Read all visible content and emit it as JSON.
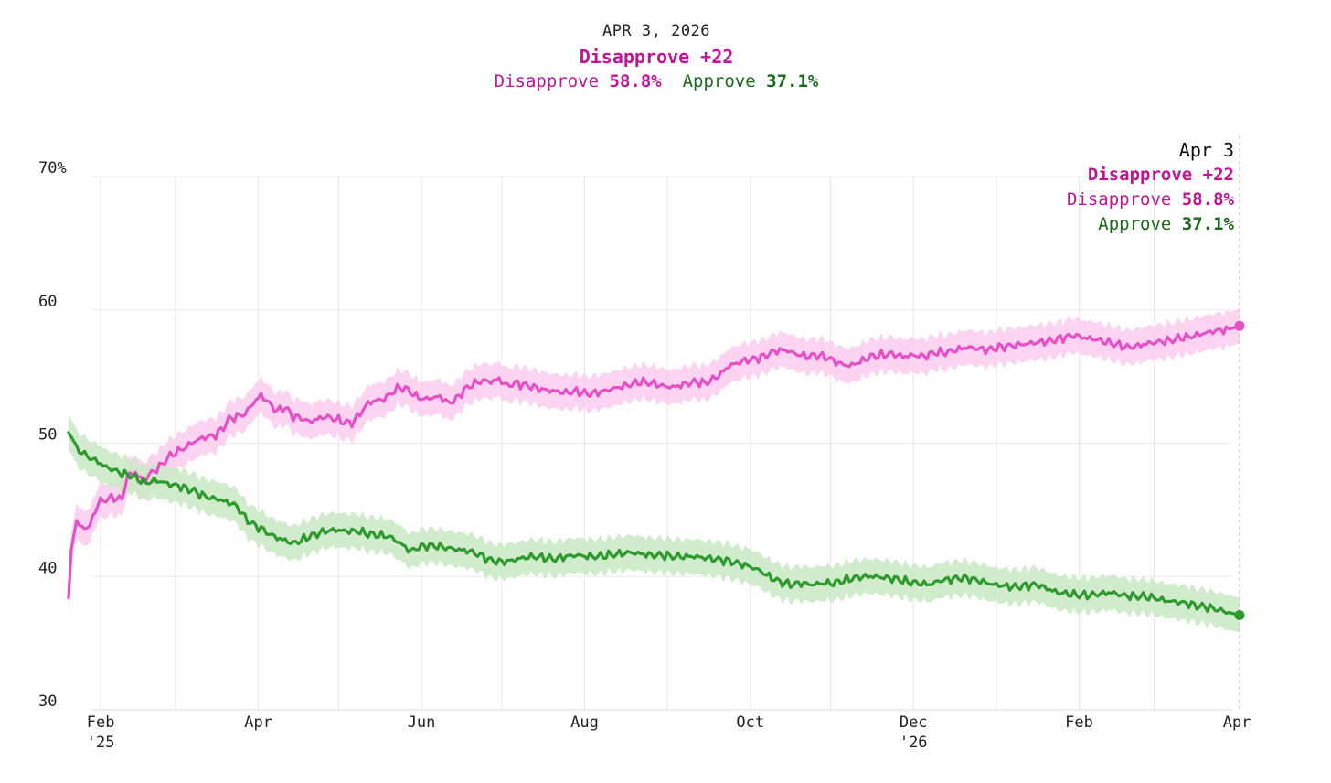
{
  "header": {
    "date": "APR 3, 2026",
    "spread": "Disapprove +22",
    "disapprove_label": "Disapprove",
    "disapprove_value": "58.8%",
    "approve_label": "Approve",
    "approve_value": "37.1%"
  },
  "tooltip": {
    "date": "Apr 3",
    "spread": "Disapprove +22",
    "disapprove_label": "Disapprove",
    "disapprove_value": "58.8%",
    "approve_label": "Approve",
    "approve_value": "37.1%"
  },
  "chart_data": {
    "type": "line",
    "title": "APR 3, 2026",
    "x_unit": "days since 2025-01-20",
    "xlim": [
      0,
      438
    ],
    "ylim": [
      30,
      70
    ],
    "yticks": [
      {
        "value": 70,
        "label": "70%"
      },
      {
        "value": 60,
        "label": "60"
      },
      {
        "value": 50,
        "label": "50"
      },
      {
        "value": 40,
        "label": "40"
      },
      {
        "value": 30,
        "label": "30"
      }
    ],
    "xticks": [
      {
        "day": 12,
        "label": "Feb",
        "sublabel": "'25"
      },
      {
        "day": 71,
        "label": "Apr",
        "sublabel": ""
      },
      {
        "day": 132,
        "label": "Jun",
        "sublabel": ""
      },
      {
        "day": 193,
        "label": "Aug",
        "sublabel": ""
      },
      {
        "day": 255,
        "label": "Oct",
        "sublabel": ""
      },
      {
        "day": 316,
        "label": "Dec",
        "sublabel": "'26"
      },
      {
        "day": 378,
        "label": "Feb",
        "sublabel": ""
      },
      {
        "day": 437,
        "label": "Apr",
        "sublabel": ""
      }
    ],
    "grid_days": [
      12,
      40,
      71,
      101,
      132,
      162,
      193,
      224,
      255,
      285,
      316,
      347,
      378,
      406,
      437
    ],
    "legend": "none",
    "colors": {
      "disapprove": "#e550c6",
      "disapprove_band": "#fbcdf0",
      "approve": "#2e9a2e",
      "approve_band": "#c9e9c4",
      "disapprove_text": "#c01595",
      "approve_text": "#1a6b1a"
    },
    "series": [
      {
        "name": "Disapprove",
        "band": 1.3,
        "points": [
          [
            0,
            38.4
          ],
          [
            1,
            42.0
          ],
          [
            3,
            44.2
          ],
          [
            5,
            43.6
          ],
          [
            8,
            43.8
          ],
          [
            11,
            45.5
          ],
          [
            14,
            45.8
          ],
          [
            17,
            45.9
          ],
          [
            20,
            45.8
          ],
          [
            22,
            47.5
          ],
          [
            25,
            47.8
          ],
          [
            28,
            47.1
          ],
          [
            31,
            47.8
          ],
          [
            34,
            48.2
          ],
          [
            37,
            48.9
          ],
          [
            40,
            49.3
          ],
          [
            43,
            49.6
          ],
          [
            46,
            50.0
          ],
          [
            50,
            50.4
          ],
          [
            55,
            50.6
          ],
          [
            58,
            51.2
          ],
          [
            60,
            51.8
          ],
          [
            63,
            52.0
          ],
          [
            66,
            52.2
          ],
          [
            69,
            53.0
          ],
          [
            72,
            53.6
          ],
          [
            75,
            53.0
          ],
          [
            78,
            52.4
          ],
          [
            81,
            52.7
          ],
          [
            84,
            52.0
          ],
          [
            87,
            51.9
          ],
          [
            90,
            51.6
          ],
          [
            93,
            51.8
          ],
          [
            96,
            52.0
          ],
          [
            100,
            51.8
          ],
          [
            103,
            51.6
          ],
          [
            106,
            51.5
          ],
          [
            109,
            52.2
          ],
          [
            112,
            53.0
          ],
          [
            115,
            53.2
          ],
          [
            118,
            53.3
          ],
          [
            121,
            53.8
          ],
          [
            124,
            54.2
          ],
          [
            127,
            54.0
          ],
          [
            130,
            53.5
          ],
          [
            133,
            53.3
          ],
          [
            136,
            53.4
          ],
          [
            139,
            53.5
          ],
          [
            142,
            53.0
          ],
          [
            145,
            53.3
          ],
          [
            148,
            54.0
          ],
          [
            151,
            54.4
          ],
          [
            155,
            54.7
          ],
          [
            158,
            54.6
          ],
          [
            161,
            54.8
          ],
          [
            164,
            54.3
          ],
          [
            167,
            54.5
          ],
          [
            170,
            54.4
          ],
          [
            174,
            54.2
          ],
          [
            178,
            54.0
          ],
          [
            182,
            53.9
          ],
          [
            186,
            53.8
          ],
          [
            190,
            53.9
          ],
          [
            194,
            53.7
          ],
          [
            198,
            53.8
          ],
          [
            202,
            54.0
          ],
          [
            206,
            54.2
          ],
          [
            210,
            54.4
          ],
          [
            214,
            54.6
          ],
          [
            218,
            54.5
          ],
          [
            222,
            54.3
          ],
          [
            226,
            54.2
          ],
          [
            230,
            54.4
          ],
          [
            234,
            54.6
          ],
          [
            238,
            54.5
          ],
          [
            241,
            54.8
          ],
          [
            244,
            55.2
          ],
          [
            247,
            55.8
          ],
          [
            250,
            56.0
          ],
          [
            253,
            56.2
          ],
          [
            256,
            56.3
          ],
          [
            260,
            56.5
          ],
          [
            264,
            56.9
          ],
          [
            268,
            57.0
          ],
          [
            272,
            56.7
          ],
          [
            276,
            56.5
          ],
          [
            280,
            56.6
          ],
          [
            284,
            56.4
          ],
          [
            288,
            56.0
          ],
          [
            292,
            55.8
          ],
          [
            296,
            56.1
          ],
          [
            300,
            56.5
          ],
          [
            304,
            56.6
          ],
          [
            308,
            56.7
          ],
          [
            312,
            56.5
          ],
          [
            316,
            56.6
          ],
          [
            320,
            56.5
          ],
          [
            324,
            56.8
          ],
          [
            328,
            56.8
          ],
          [
            332,
            57.0
          ],
          [
            336,
            57.2
          ],
          [
            340,
            57.1
          ],
          [
            344,
            57.0
          ],
          [
            348,
            57.2
          ],
          [
            352,
            57.3
          ],
          [
            356,
            57.4
          ],
          [
            360,
            57.5
          ],
          [
            364,
            57.6
          ],
          [
            368,
            57.7
          ],
          [
            372,
            57.9
          ],
          [
            376,
            58.1
          ],
          [
            380,
            57.9
          ],
          [
            384,
            57.8
          ],
          [
            388,
            57.6
          ],
          [
            392,
            57.4
          ],
          [
            396,
            57.2
          ],
          [
            400,
            57.3
          ],
          [
            404,
            57.5
          ],
          [
            408,
            57.6
          ],
          [
            412,
            57.7
          ],
          [
            416,
            57.9
          ],
          [
            420,
            58.0
          ],
          [
            424,
            58.2
          ],
          [
            428,
            58.4
          ],
          [
            432,
            58.5
          ],
          [
            435,
            58.6
          ],
          [
            438,
            58.8
          ]
        ]
      },
      {
        "name": "Approve",
        "band": 1.3,
        "points": [
          [
            0,
            50.8
          ],
          [
            3,
            49.8
          ],
          [
            5,
            49.3
          ],
          [
            8,
            48.9
          ],
          [
            11,
            48.6
          ],
          [
            14,
            48.2
          ],
          [
            17,
            48.0
          ],
          [
            20,
            47.7
          ],
          [
            23,
            47.6
          ],
          [
            26,
            47.3
          ],
          [
            29,
            47.0
          ],
          [
            32,
            47.2
          ],
          [
            35,
            47.1
          ],
          [
            38,
            46.9
          ],
          [
            41,
            46.8
          ],
          [
            44,
            46.6
          ],
          [
            47,
            46.4
          ],
          [
            50,
            46.1
          ],
          [
            53,
            45.9
          ],
          [
            56,
            45.8
          ],
          [
            59,
            45.6
          ],
          [
            62,
            45.4
          ],
          [
            64,
            45.0
          ],
          [
            66,
            44.4
          ],
          [
            69,
            43.9
          ],
          [
            72,
            43.6
          ],
          [
            75,
            43.2
          ],
          [
            78,
            42.9
          ],
          [
            81,
            42.7
          ],
          [
            84,
            42.5
          ],
          [
            87,
            42.7
          ],
          [
            90,
            43.0
          ],
          [
            93,
            43.2
          ],
          [
            96,
            43.4
          ],
          [
            100,
            43.5
          ],
          [
            104,
            43.4
          ],
          [
            108,
            43.4
          ],
          [
            112,
            43.2
          ],
          [
            116,
            43.1
          ],
          [
            120,
            43.0
          ],
          [
            124,
            42.5
          ],
          [
            128,
            41.9
          ],
          [
            131,
            42.2
          ],
          [
            134,
            42.3
          ],
          [
            137,
            42.3
          ],
          [
            140,
            42.2
          ],
          [
            143,
            42.1
          ],
          [
            146,
            42.0
          ],
          [
            150,
            41.9
          ],
          [
            154,
            41.6
          ],
          [
            158,
            41.2
          ],
          [
            162,
            41.1
          ],
          [
            166,
            41.2
          ],
          [
            170,
            41.4
          ],
          [
            174,
            41.5
          ],
          [
            178,
            41.4
          ],
          [
            182,
            41.3
          ],
          [
            186,
            41.5
          ],
          [
            190,
            41.6
          ],
          [
            194,
            41.5
          ],
          [
            198,
            41.5
          ],
          [
            202,
            41.6
          ],
          [
            206,
            41.7
          ],
          [
            210,
            41.8
          ],
          [
            214,
            41.7
          ],
          [
            218,
            41.6
          ],
          [
            222,
            41.6
          ],
          [
            226,
            41.5
          ],
          [
            230,
            41.5
          ],
          [
            234,
            41.5
          ],
          [
            238,
            41.4
          ],
          [
            242,
            41.3
          ],
          [
            246,
            41.2
          ],
          [
            250,
            41.0
          ],
          [
            254,
            40.8
          ],
          [
            258,
            40.5
          ],
          [
            262,
            40.0
          ],
          [
            266,
            39.6
          ],
          [
            270,
            39.4
          ],
          [
            274,
            39.5
          ],
          [
            278,
            39.4
          ],
          [
            282,
            39.5
          ],
          [
            286,
            39.5
          ],
          [
            290,
            39.7
          ],
          [
            294,
            39.9
          ],
          [
            298,
            40.0
          ],
          [
            302,
            40.0
          ],
          [
            306,
            39.9
          ],
          [
            310,
            39.8
          ],
          [
            314,
            39.6
          ],
          [
            318,
            39.5
          ],
          [
            322,
            39.4
          ],
          [
            326,
            39.7
          ],
          [
            330,
            39.8
          ],
          [
            334,
            39.9
          ],
          [
            338,
            39.8
          ],
          [
            342,
            39.6
          ],
          [
            346,
            39.4
          ],
          [
            350,
            39.3
          ],
          [
            354,
            39.2
          ],
          [
            358,
            39.3
          ],
          [
            362,
            39.4
          ],
          [
            366,
            39.1
          ],
          [
            370,
            38.8
          ],
          [
            374,
            38.7
          ],
          [
            378,
            38.6
          ],
          [
            382,
            38.6
          ],
          [
            386,
            38.7
          ],
          [
            390,
            38.8
          ],
          [
            394,
            38.6
          ],
          [
            398,
            38.5
          ],
          [
            402,
            38.5
          ],
          [
            406,
            38.4
          ],
          [
            410,
            38.2
          ],
          [
            414,
            38.1
          ],
          [
            418,
            38.0
          ],
          [
            422,
            37.8
          ],
          [
            426,
            37.7
          ],
          [
            430,
            37.5
          ],
          [
            434,
            37.3
          ],
          [
            438,
            37.1
          ]
        ]
      }
    ]
  }
}
